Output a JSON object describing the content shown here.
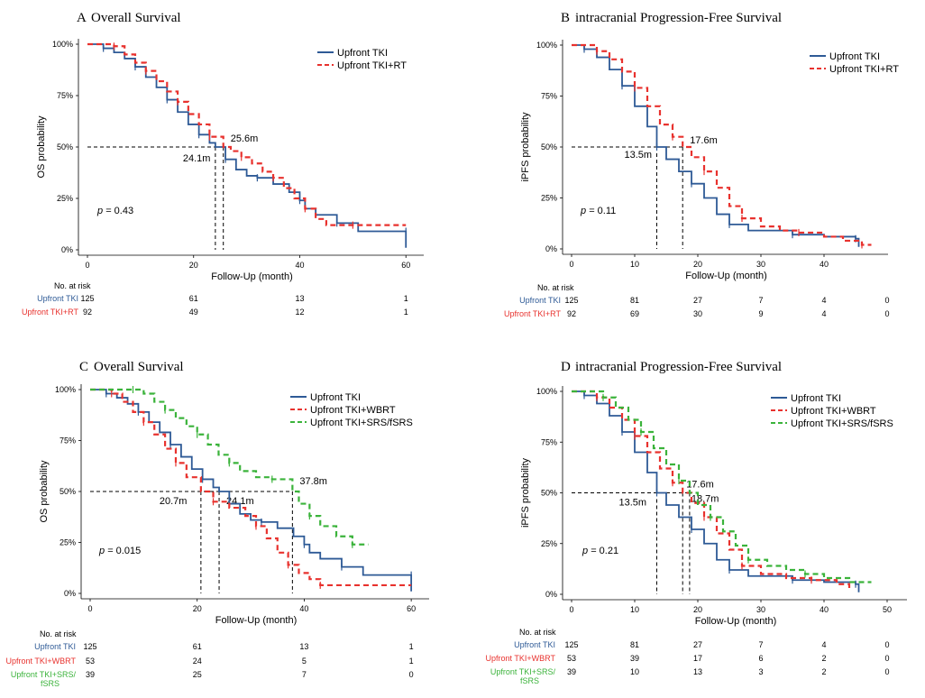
{
  "chart_data": [
    {
      "type": "line",
      "panel_letter": "A",
      "title": "Overall Survival",
      "xlabel": "Follow-Up (month)",
      "ylabel": "OS probability",
      "xlim": [
        0,
        62
      ],
      "ylim": [
        0,
        1
      ],
      "x_ticks": [
        0,
        20,
        40,
        60
      ],
      "y_ticks": [
        "0%",
        "25%",
        "50%",
        "75%",
        "100%"
      ],
      "legend_position": "top-right",
      "p_value": "= 0.43",
      "median_lines": [
        {
          "x": 24.1,
          "label": "24.1m"
        },
        {
          "x": 25.6,
          "label": "25.6m"
        }
      ],
      "series": [
        {
          "name": "Upfront TKI",
          "color": "#2e5a96",
          "dash": false,
          "x": [
            0,
            1,
            3,
            5,
            7,
            9,
            11,
            13,
            15,
            17,
            19,
            21,
            23,
            24.1,
            26,
            28,
            30,
            32,
            35,
            38,
            40,
            41,
            43,
            47,
            51,
            56,
            60,
            60
          ],
          "y": [
            1.0,
            1.0,
            0.98,
            0.96,
            0.93,
            0.89,
            0.84,
            0.79,
            0.73,
            0.67,
            0.61,
            0.56,
            0.52,
            0.5,
            0.44,
            0.39,
            0.36,
            0.35,
            0.32,
            0.28,
            0.24,
            0.2,
            0.17,
            0.13,
            0.09,
            0.09,
            0.09,
            0.01
          ]
        },
        {
          "name": "Upfront TKI+RT",
          "color": "#e8322e",
          "dash": true,
          "x": [
            0,
            3,
            5,
            7,
            9,
            11,
            13,
            15,
            17,
            19,
            21,
            23,
            25.6,
            27,
            29,
            31,
            33,
            35,
            37,
            39,
            41,
            43,
            45,
            50,
            60
          ],
          "y": [
            1.0,
            1.0,
            0.99,
            0.95,
            0.91,
            0.87,
            0.82,
            0.77,
            0.72,
            0.66,
            0.61,
            0.55,
            0.5,
            0.48,
            0.45,
            0.42,
            0.38,
            0.35,
            0.3,
            0.25,
            0.2,
            0.15,
            0.12,
            0.12,
            0.12
          ]
        }
      ],
      "risk_table": {
        "header": "No. at risk",
        "times": [
          0,
          20,
          40,
          60
        ],
        "rows": [
          {
            "label": "Upfront TKI",
            "color": "#2e5a96",
            "values": [
              "125",
              "61",
              "13",
              "1"
            ]
          },
          {
            "label": "Upfront TKI+RT",
            "color": "#e8322e",
            "values": [
              "92",
              "49",
              "12",
              "1"
            ]
          }
        ]
      }
    },
    {
      "type": "line",
      "panel_letter": "B",
      "title": "intracranial Progression-Free Survival",
      "xlabel": "Follow-Up (month)",
      "ylabel": "iPFS probability",
      "xlim": [
        0,
        49
      ],
      "ylim": [
        0,
        1
      ],
      "x_ticks": [
        0,
        10,
        20,
        30,
        40
      ],
      "y_ticks": [
        "0%",
        "25%",
        "50%",
        "75%",
        "100%"
      ],
      "legend_position": "top-right",
      "p_value": "= 0.11",
      "median_lines": [
        {
          "x": 13.5,
          "label": "13.5m"
        },
        {
          "x": 17.6,
          "label": "17.6m"
        }
      ],
      "series": [
        {
          "name": "Upfront TKI",
          "color": "#2e5a96",
          "dash": false,
          "x": [
            0,
            1,
            2,
            4,
            6,
            8,
            10,
            12,
            13.5,
            15,
            17,
            19,
            21,
            23,
            25,
            28,
            31,
            35,
            40,
            43,
            45,
            45.5
          ],
          "y": [
            1.0,
            1.0,
            0.98,
            0.94,
            0.88,
            0.8,
            0.7,
            0.6,
            0.5,
            0.44,
            0.38,
            0.32,
            0.25,
            0.17,
            0.12,
            0.09,
            0.09,
            0.07,
            0.06,
            0.06,
            0.05,
            0.01
          ]
        },
        {
          "name": "Upfront TKI+RT",
          "color": "#e8322e",
          "dash": true,
          "x": [
            0,
            2,
            4,
            6,
            8,
            10,
            12,
            14,
            16,
            17.6,
            19,
            21,
            23,
            25,
            27,
            30,
            33,
            36,
            40,
            43,
            46,
            47.5
          ],
          "y": [
            1.0,
            1.0,
            0.97,
            0.93,
            0.87,
            0.79,
            0.7,
            0.61,
            0.55,
            0.5,
            0.45,
            0.38,
            0.3,
            0.21,
            0.15,
            0.11,
            0.09,
            0.08,
            0.06,
            0.04,
            0.02,
            0.02
          ]
        }
      ],
      "risk_table": {
        "header": "No. at risk",
        "times": [
          0,
          10,
          20,
          30,
          40,
          50
        ],
        "rows": [
          {
            "label": "Upfront TKI",
            "color": "#2e5a96",
            "values": [
              "125",
              "81",
              "27",
              "7",
              "4",
              "0"
            ]
          },
          {
            "label": "Upfront TKI+RT",
            "color": "#e8322e",
            "values": [
              "92",
              "69",
              "30",
              "9",
              "4",
              "0"
            ]
          }
        ]
      }
    },
    {
      "type": "line",
      "panel_letter": "C",
      "title": "Overall Survival",
      "xlabel": "Follow-Up (month)",
      "ylabel": "OS probability",
      "xlim": [
        0,
        62
      ],
      "ylim": [
        0,
        1
      ],
      "x_ticks": [
        0,
        20,
        40,
        60
      ],
      "y_ticks": [
        "0%",
        "25%",
        "50%",
        "75%",
        "100%"
      ],
      "legend_position": "top-right",
      "p_value": "= 0.015",
      "median_lines": [
        {
          "x": 20.7,
          "label": "20.7m"
        },
        {
          "x": 24.1,
          "label": "24.1m"
        },
        {
          "x": 37.8,
          "label": "37.8m"
        }
      ],
      "series": [
        {
          "name": "Upfront TKI",
          "color": "#2e5a96",
          "dash": false,
          "x": [
            0,
            1,
            3,
            5,
            7,
            9,
            11,
            13,
            15,
            17,
            19,
            21,
            23,
            24.1,
            26,
            28,
            30,
            32,
            35,
            38,
            40,
            41,
            43,
            47,
            51,
            56,
            60,
            60
          ],
          "y": [
            1.0,
            1.0,
            0.98,
            0.96,
            0.93,
            0.89,
            0.84,
            0.79,
            0.73,
            0.67,
            0.61,
            0.56,
            0.52,
            0.5,
            0.44,
            0.39,
            0.36,
            0.35,
            0.32,
            0.28,
            0.24,
            0.2,
            0.17,
            0.13,
            0.09,
            0.09,
            0.09,
            0.01
          ]
        },
        {
          "name": "Upfront TKI+WBRT",
          "color": "#e8322e",
          "dash": true,
          "x": [
            0,
            2,
            4,
            6,
            8,
            10,
            12,
            14,
            16,
            18,
            20.7,
            23,
            26,
            29,
            31,
            33,
            35,
            37,
            39,
            41,
            43,
            50,
            60
          ],
          "y": [
            1.0,
            1.0,
            0.98,
            0.94,
            0.89,
            0.84,
            0.78,
            0.71,
            0.64,
            0.57,
            0.5,
            0.45,
            0.42,
            0.38,
            0.33,
            0.27,
            0.2,
            0.14,
            0.1,
            0.07,
            0.04,
            0.04,
            0.04
          ]
        },
        {
          "name": "Upfront TKI+SRS/fSRS",
          "color": "#3bb33b",
          "dash": true,
          "x": [
            0,
            4,
            8,
            10,
            12,
            14,
            16,
            18,
            20,
            22,
            24,
            26,
            28,
            31,
            34,
            37.8,
            39,
            41,
            43,
            46,
            49,
            52
          ],
          "y": [
            1.0,
            1.0,
            1.0,
            0.98,
            0.94,
            0.9,
            0.86,
            0.82,
            0.78,
            0.73,
            0.68,
            0.64,
            0.6,
            0.57,
            0.56,
            0.5,
            0.44,
            0.38,
            0.33,
            0.28,
            0.24,
            0.24
          ]
        }
      ],
      "risk_table": {
        "header": "No. at risk",
        "times": [
          0,
          20,
          40,
          60
        ],
        "rows": [
          {
            "label": "Upfront TKI",
            "color": "#2e5a96",
            "values": [
              "125",
              "61",
              "13",
              "1"
            ]
          },
          {
            "label": "Upfront TKI+WBRT",
            "color": "#e8322e",
            "values": [
              "53",
              "24",
              "5",
              "1"
            ]
          },
          {
            "label": "Upfront TKI+SRS/",
            "label2": "fSRS",
            "color": "#3bb33b",
            "values": [
              "39",
              "25",
              "7",
              "0"
            ]
          }
        ]
      }
    },
    {
      "type": "line",
      "panel_letter": "D",
      "title": "intracranial Progression-Free Survival",
      "xlabel": "Follow-Up (month)",
      "ylabel": "iPFS probability",
      "xlim": [
        0,
        52
      ],
      "ylim": [
        0,
        1
      ],
      "x_ticks": [
        0,
        10,
        20,
        30,
        40,
        50
      ],
      "y_ticks": [
        "0%",
        "25%",
        "50%",
        "75%",
        "100%"
      ],
      "legend_position": "top-right",
      "p_value": "= 0.21",
      "median_lines": [
        {
          "x": 13.5,
          "label": "13.5m"
        },
        {
          "x": 17.6,
          "label": "17.6m"
        },
        {
          "x": 18.7,
          "label": "18.7m"
        }
      ],
      "series": [
        {
          "name": "Upfront TKI",
          "color": "#2e5a96",
          "dash": false,
          "x": [
            0,
            1,
            2,
            4,
            6,
            8,
            10,
            12,
            13.5,
            15,
            17,
            19,
            21,
            23,
            25,
            28,
            31,
            35,
            40,
            43,
            45,
            45.5
          ],
          "y": [
            1.0,
            1.0,
            0.98,
            0.94,
            0.88,
            0.8,
            0.7,
            0.6,
            0.5,
            0.44,
            0.38,
            0.32,
            0.25,
            0.17,
            0.12,
            0.09,
            0.09,
            0.07,
            0.06,
            0.06,
            0.05,
            0.01
          ]
        },
        {
          "name": "Upfront TKI+WBRT",
          "color": "#e8322e",
          "dash": true,
          "x": [
            0,
            2,
            4,
            6,
            8,
            10,
            12,
            14,
            16,
            17.6,
            19,
            21,
            23,
            25,
            27,
            30,
            34,
            38,
            42,
            44
          ],
          "y": [
            1.0,
            1.0,
            0.97,
            0.92,
            0.86,
            0.78,
            0.7,
            0.62,
            0.55,
            0.5,
            0.45,
            0.38,
            0.3,
            0.22,
            0.14,
            0.1,
            0.08,
            0.07,
            0.05,
            0.03
          ]
        },
        {
          "name": "Upfront TKI+SRS/fSRS",
          "color": "#3bb33b",
          "dash": true,
          "x": [
            0,
            3,
            5,
            7,
            9,
            11,
            13,
            15,
            17,
            18.7,
            20,
            22,
            24,
            26,
            28,
            31,
            34,
            37,
            40,
            44,
            47.5
          ],
          "y": [
            1.0,
            1.0,
            0.97,
            0.92,
            0.86,
            0.8,
            0.72,
            0.64,
            0.56,
            0.5,
            0.44,
            0.38,
            0.31,
            0.24,
            0.17,
            0.14,
            0.12,
            0.1,
            0.08,
            0.06,
            0.06
          ]
        }
      ],
      "risk_table": {
        "header": "No. at risk",
        "times": [
          0,
          10,
          20,
          30,
          40,
          50
        ],
        "rows": [
          {
            "label": "Upfront TKI",
            "color": "#2e5a96",
            "values": [
              "125",
              "81",
              "27",
              "7",
              "4",
              "0"
            ]
          },
          {
            "label": "Upfront TKI+WBRT",
            "color": "#e8322e",
            "values": [
              "53",
              "39",
              "17",
              "6",
              "2",
              "0"
            ]
          },
          {
            "label": "Upfront TKI+SRS/",
            "label2": "fSRS",
            "color": "#3bb33b",
            "values": [
              "39",
              "10",
              "13",
              "3",
              "2",
              "0"
            ]
          }
        ]
      }
    }
  ]
}
